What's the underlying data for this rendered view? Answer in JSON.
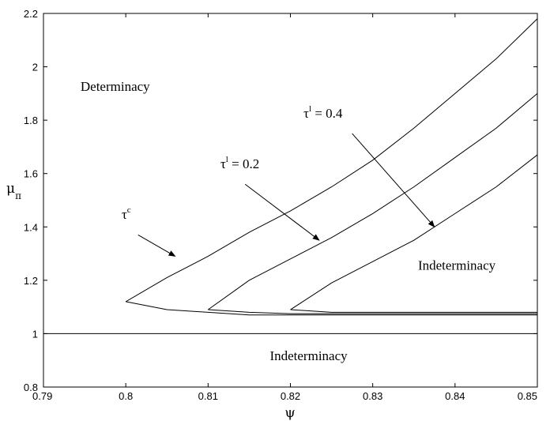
{
  "chart_data": {
    "type": "line",
    "title": "",
    "xlabel": "ψ",
    "ylabel": {
      "main": "μ",
      "sub": "π"
    },
    "xlim": [
      0.79,
      0.85
    ],
    "ylim": [
      0.8,
      2.2
    ],
    "xticks": [
      "0.79",
      "0.8",
      "0.81",
      "0.82",
      "0.83",
      "0.84",
      "0.85"
    ],
    "yticks": [
      "0.8",
      "1",
      "1.2",
      "1.4",
      "1.6",
      "1.8",
      "2",
      "2.2"
    ],
    "grid": false,
    "series": [
      {
        "upper": [
          [
            0.8,
            1.12
          ],
          [
            0.805,
            1.21
          ],
          [
            0.81,
            1.29
          ],
          [
            0.815,
            1.38
          ],
          [
            0.82,
            1.46
          ],
          [
            0.825,
            1.55
          ],
          [
            0.83,
            1.65
          ],
          [
            0.835,
            1.77
          ],
          [
            0.84,
            1.9
          ],
          [
            0.845,
            2.03
          ],
          [
            0.85,
            2.18
          ]
        ],
        "lower": [
          [
            0.8,
            1.12
          ],
          [
            0.805,
            1.09
          ],
          [
            0.81,
            1.08
          ],
          [
            0.815,
            1.07
          ],
          [
            0.85,
            1.07
          ]
        ]
      },
      {
        "upper": [
          [
            0.81,
            1.09
          ],
          [
            0.815,
            1.2
          ],
          [
            0.82,
            1.28
          ],
          [
            0.825,
            1.36
          ],
          [
            0.83,
            1.45
          ],
          [
            0.835,
            1.55
          ],
          [
            0.84,
            1.66
          ],
          [
            0.845,
            1.77
          ],
          [
            0.85,
            1.9
          ]
        ],
        "lower": [
          [
            0.81,
            1.09
          ],
          [
            0.815,
            1.08
          ],
          [
            0.82,
            1.075
          ],
          [
            0.85,
            1.075
          ]
        ]
      },
      {
        "upper": [
          [
            0.82,
            1.09
          ],
          [
            0.825,
            1.19
          ],
          [
            0.83,
            1.27
          ],
          [
            0.835,
            1.35
          ],
          [
            0.84,
            1.45
          ],
          [
            0.845,
            1.55
          ],
          [
            0.85,
            1.67
          ]
        ],
        "lower": [
          [
            0.82,
            1.09
          ],
          [
            0.825,
            1.08
          ],
          [
            0.85,
            1.08
          ]
        ]
      }
    ],
    "reference_lines": [
      {
        "y": 1.0
      }
    ],
    "region_labels": [
      {
        "text": "Determinacy",
        "x": 0.7945,
        "y": 1.91
      },
      {
        "text": "Indeterminacy",
        "x": 0.8355,
        "y": 1.24
      },
      {
        "text": "Indeterminacy",
        "x": 0.8175,
        "y": 0.9
      }
    ],
    "annotations": [
      {
        "base": "τ",
        "sup": "c",
        "suffix": "",
        "text_x": 0.7995,
        "text_y": 1.43,
        "from": [
          0.8015,
          1.37
        ],
        "to": [
          0.806,
          1.29
        ]
      },
      {
        "base": "τ",
        "sup": "l",
        "suffix": " = 0.2",
        "text_x": 0.8115,
        "text_y": 1.62,
        "from": [
          0.8145,
          1.56
        ],
        "to": [
          0.8235,
          1.35
        ]
      },
      {
        "base": "τ",
        "sup": "l",
        "suffix": " = 0.4",
        "text_x": 0.8216,
        "text_y": 1.81,
        "from": [
          0.8275,
          1.75
        ],
        "to": [
          0.8375,
          1.4
        ]
      }
    ]
  }
}
